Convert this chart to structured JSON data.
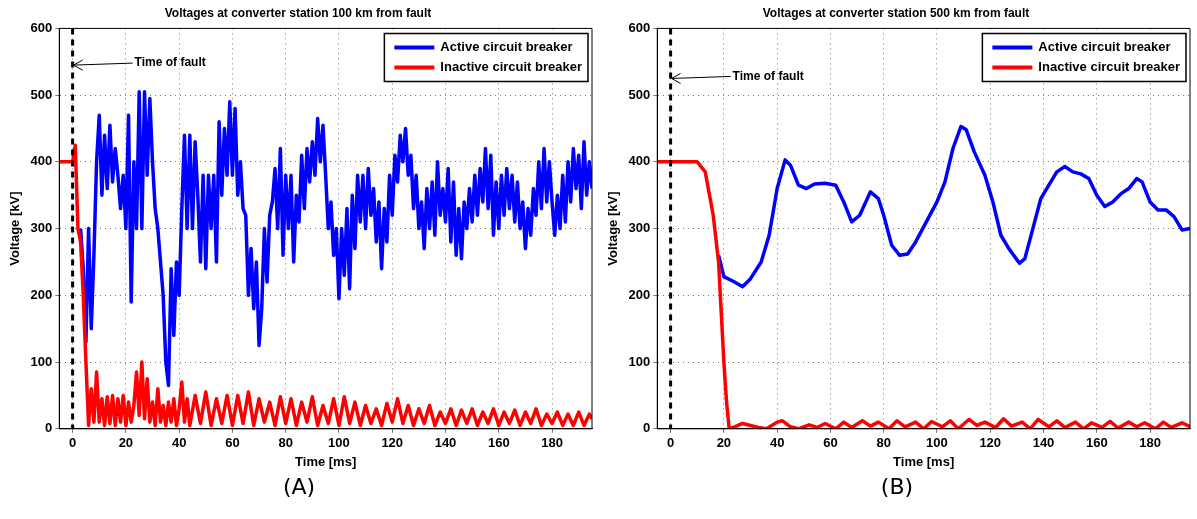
{
  "chart_data": [
    {
      "type": "line",
      "title": "Voltages at converter station 100 km from fault",
      "xlabel": "Time [ms]",
      "ylabel": "Voltage [kV]",
      "xlim": [
        -5,
        195
      ],
      "ylim": [
        0,
        600
      ],
      "xticks": [
        0,
        20,
        40,
        60,
        80,
        100,
        120,
        140,
        160,
        180
      ],
      "yticks": [
        0,
        100,
        200,
        300,
        400,
        500,
        600
      ],
      "grid": true,
      "legend": "top right",
      "marker": "none",
      "line_style": "solid",
      "ref_lines": [
        {
          "axis": "x",
          "value": 0,
          "color": "#000000",
          "line_style": "dashed"
        }
      ],
      "annotations": [
        {
          "text": "Time of fault",
          "x": 0,
          "y": 545
        },
        "(A)"
      ],
      "series": [
        {
          "name": "Active circuit breaker",
          "color": "#0000ff",
          "x": [
            3,
            4,
            5,
            6,
            7,
            8,
            9,
            10,
            11,
            12,
            13,
            14,
            15,
            16,
            17,
            18,
            19,
            20,
            21,
            22,
            23,
            24,
            25,
            26,
            27,
            28,
            29,
            30,
            31,
            32,
            33,
            34,
            35,
            36,
            37,
            38,
            39,
            40,
            41,
            42,
            43,
            44,
            45,
            46,
            47,
            48,
            49,
            50,
            51,
            52,
            53,
            54,
            55,
            56,
            57,
            58,
            59,
            60,
            61,
            62,
            63,
            64,
            65,
            66,
            67,
            68,
            69,
            70,
            71,
            72,
            73,
            74,
            75,
            76,
            77,
            78,
            79,
            80,
            81,
            82,
            83,
            84,
            85,
            86,
            87,
            88,
            89,
            90,
            91,
            92,
            93,
            94,
            95,
            96,
            97,
            98,
            99,
            100,
            101,
            102,
            103,
            104,
            105,
            106,
            107,
            108,
            109,
            110,
            111,
            112,
            113,
            114,
            115,
            116,
            117,
            118,
            119,
            120,
            121,
            122,
            123,
            124,
            125,
            126,
            127,
            128,
            129,
            130,
            131,
            132,
            133,
            134,
            135,
            136,
            137,
            138,
            139,
            140,
            141,
            142,
            143,
            144,
            145,
            146,
            147,
            148,
            149,
            150,
            151,
            152,
            153,
            154,
            155,
            156,
            157,
            158,
            159,
            160,
            161,
            162,
            163,
            164,
            165,
            166,
            167,
            168,
            169,
            170,
            171,
            172,
            173,
            174,
            175,
            176,
            177,
            178,
            179,
            180,
            181,
            182,
            183,
            184,
            185,
            186,
            187,
            188,
            189,
            190,
            191,
            192,
            193,
            194,
            195
          ],
          "values": [
            300,
            240,
            130,
            300,
            150,
            260,
            400,
            470,
            350,
            440,
            360,
            455,
            370,
            420,
            380,
            330,
            380,
            300,
            470,
            190,
            400,
            300,
            505,
            300,
            505,
            380,
            495,
            400,
            330,
            300,
            250,
            200,
            100,
            65,
            240,
            140,
            250,
            200,
            330,
            440,
            300,
            440,
            300,
            430,
            350,
            250,
            380,
            240,
            380,
            300,
            380,
            250,
            460,
            350,
            450,
            380,
            490,
            380,
            480,
            350,
            400,
            330,
            320,
            200,
            270,
            180,
            250,
            125,
            180,
            300,
            220,
            320,
            340,
            390,
            300,
            420,
            260,
            380,
            300,
            380,
            250,
            350,
            310,
            410,
            330,
            420,
            370,
            430,
            380,
            465,
            400,
            455,
            380,
            300,
            340,
            260,
            300,
            195,
            300,
            230,
            330,
            210,
            350,
            270,
            380,
            310,
            380,
            300,
            390,
            320,
            360,
            280,
            340,
            240,
            330,
            280,
            380,
            320,
            410,
            370,
            440,
            400,
            450,
            380,
            410,
            330,
            380,
            300,
            340,
            270,
            360,
            300,
            370,
            290,
            400,
            320,
            360,
            310,
            390,
            280,
            370,
            260,
            330,
            255,
            340,
            300,
            360,
            310,
            380,
            320,
            390,
            340,
            420,
            330,
            410,
            290,
            370,
            300,
            380,
            320,
            390,
            330,
            380,
            310,
            370,
            300,
            340,
            270,
            330,
            290,
            360,
            320,
            400,
            330,
            420,
            340,
            400,
            340,
            290,
            350,
            300,
            380,
            310,
            400,
            340,
            420,
            360,
            410,
            330,
            430,
            350,
            400,
            360
          ]
        },
        {
          "name": "Inactive circuit breaker",
          "color": "#ff0000",
          "x": [
            -5,
            0,
            1,
            2,
            3,
            4,
            5,
            6,
            7,
            8,
            9,
            10,
            11,
            12,
            13,
            14,
            15,
            16,
            17,
            18,
            19,
            20,
            21,
            22,
            23,
            24,
            25,
            26,
            27,
            28,
            29,
            30,
            31,
            32,
            33,
            34,
            35,
            36,
            37,
            38,
            39,
            40,
            41,
            42,
            43,
            44,
            46,
            48,
            50,
            52,
            54,
            56,
            58,
            60,
            62,
            64,
            66,
            68,
            70,
            72,
            74,
            76,
            78,
            80,
            82,
            84,
            86,
            88,
            90,
            92,
            94,
            96,
            98,
            100,
            102,
            104,
            106,
            108,
            110,
            112,
            114,
            116,
            118,
            120,
            122,
            124,
            126,
            128,
            130,
            132,
            134,
            136,
            138,
            140,
            142,
            144,
            146,
            148,
            150,
            152,
            154,
            156,
            158,
            160,
            162,
            164,
            166,
            168,
            170,
            172,
            174,
            176,
            178,
            180,
            182,
            184,
            186,
            188,
            190,
            192,
            194,
            195
          ],
          "values": [
            400,
            400,
            425,
            300,
            280,
            200,
            100,
            5,
            60,
            10,
            85,
            10,
            45,
            5,
            48,
            8,
            50,
            5,
            45,
            10,
            50,
            5,
            40,
            10,
            35,
            85,
            20,
            100,
            15,
            75,
            10,
            40,
            5,
            60,
            10,
            35,
            5,
            40,
            10,
            45,
            5,
            30,
            70,
            10,
            45,
            5,
            50,
            8,
            55,
            5,
            45,
            8,
            50,
            5,
            50,
            8,
            55,
            5,
            45,
            10,
            40,
            5,
            48,
            8,
            45,
            5,
            40,
            10,
            48,
            5,
            35,
            8,
            45,
            5,
            48,
            8,
            40,
            5,
            35,
            8,
            30,
            5,
            38,
            10,
            45,
            8,
            35,
            5,
            30,
            8,
            35,
            5,
            25,
            8,
            30,
            5,
            28,
            8,
            30,
            5,
            25,
            8,
            30,
            5,
            25,
            8,
            28,
            5,
            25,
            8,
            30,
            5,
            22,
            8,
            25,
            5,
            22,
            5,
            25,
            5,
            22,
            15
          ]
        }
      ]
    },
    {
      "type": "line",
      "title": "Voltages at converter station 500 km from fault",
      "xlabel": "Time [ms]",
      "ylabel": "Voltage [kV]",
      "xlim": [
        -5,
        195
      ],
      "ylim": [
        0,
        600
      ],
      "xticks": [
        0,
        20,
        40,
        60,
        80,
        100,
        120,
        140,
        160,
        180
      ],
      "yticks": [
        0,
        100,
        200,
        300,
        400,
        500,
        600
      ],
      "grid": true,
      "legend": "top right",
      "marker": "none",
      "line_style": "solid",
      "ref_lines": [
        {
          "axis": "x",
          "value": 0,
          "color": "#000000",
          "line_style": "dashed"
        }
      ],
      "annotations": [
        {
          "text": "Time of fault",
          "x": 0,
          "y": 525
        },
        "(B)"
      ],
      "series": [
        {
          "name": "Active circuit breaker",
          "color": "#0000ff",
          "x": [
            18,
            20,
            24,
            27,
            30,
            34,
            37,
            40,
            43,
            45,
            48,
            51,
            54,
            58,
            62,
            65,
            68,
            71,
            75,
            78,
            80,
            83,
            86,
            89,
            92,
            96,
            100,
            103,
            106,
            109,
            111,
            114,
            118,
            121,
            124,
            127,
            131,
            133,
            136,
            139,
            142,
            145,
            148,
            151,
            154,
            157,
            160,
            163,
            166,
            169,
            172,
            175,
            177,
            180,
            183,
            186,
            189,
            192,
            195
          ],
          "values": [
            260,
            228,
            220,
            213,
            225,
            250,
            290,
            360,
            403,
            395,
            365,
            360,
            367,
            368,
            365,
            340,
            310,
            320,
            355,
            345,
            320,
            275,
            260,
            262,
            280,
            310,
            340,
            370,
            420,
            453,
            448,
            415,
            380,
            340,
            290,
            270,
            248,
            255,
            300,
            345,
            365,
            385,
            393,
            385,
            382,
            375,
            350,
            333,
            340,
            352,
            360,
            375,
            370,
            340,
            328,
            328,
            318,
            298,
            300
          ]
        },
        {
          "name": "Inactive circuit breaker",
          "color": "#ff0000",
          "x": [
            -5,
            0,
            10,
            13,
            16,
            18,
            20,
            21,
            22,
            24,
            27,
            30,
            33,
            36,
            40,
            42,
            45,
            48,
            52,
            55,
            58,
            62,
            65,
            68,
            72,
            75,
            78,
            82,
            85,
            88,
            92,
            95,
            98,
            102,
            105,
            108,
            112,
            115,
            118,
            122,
            125,
            128,
            132,
            135,
            138,
            142,
            145,
            148,
            152,
            155,
            158,
            162,
            165,
            168,
            172,
            175,
            178,
            182,
            185,
            188,
            192,
            195
          ],
          "values": [
            400,
            400,
            400,
            385,
            320,
            250,
            100,
            40,
            0,
            3,
            8,
            5,
            2,
            0,
            10,
            12,
            3,
            0,
            6,
            2,
            8,
            0,
            10,
            2,
            12,
            4,
            10,
            0,
            12,
            3,
            10,
            0,
            11,
            3,
            12,
            0,
            14,
            5,
            10,
            2,
            15,
            4,
            10,
            0,
            14,
            3,
            12,
            2,
            10,
            0,
            9,
            2,
            11,
            1,
            10,
            3,
            9,
            0,
            10,
            2,
            9,
            3
          ]
        }
      ]
    }
  ]
}
